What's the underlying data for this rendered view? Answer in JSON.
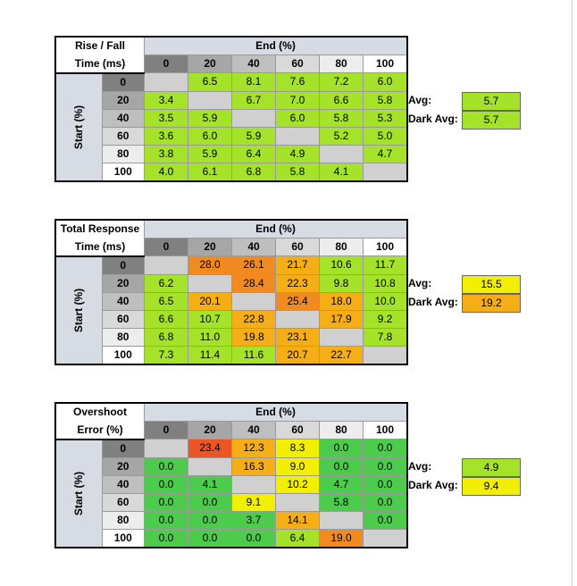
{
  "colors": {
    "header_bg": "#d6dbe4",
    "col_header_shades": [
      "#808080",
      "#a6a6a6",
      "#bfbfbf",
      "#d9d9d9",
      "#ededed",
      "#ffffff"
    ],
    "empty_cell": "#d0d0d0",
    "scale": {
      "green": "#4ccb4c",
      "lime": "#a5e32b",
      "yellow": "#f2ef00",
      "amber": "#f6ae16",
      "orange": "#f28a22",
      "red_orange": "#ee5524"
    }
  },
  "end_label": "End (%)",
  "start_label": "Start (%)",
  "levels": [
    "0",
    "20",
    "40",
    "60",
    "80",
    "100"
  ],
  "avg_label": "Avg:",
  "dark_avg_label": "Dark Avg:",
  "chart_data": [
    {
      "type": "table",
      "title_line1": "Rise / Fall",
      "title_line2": "Time (ms)",
      "avg": "5.7",
      "dark_avg": "5.7",
      "cells": [
        [
          "",
          "6.5",
          "8.1",
          "7.6",
          "7.2",
          "6.0"
        ],
        [
          "3.4",
          "",
          "6.7",
          "7.0",
          "6.6",
          "5.8"
        ],
        [
          "3.5",
          "5.9",
          "",
          "6.0",
          "5.8",
          "5.3"
        ],
        [
          "3.6",
          "6.0",
          "5.9",
          "",
          "5.2",
          "5.0"
        ],
        [
          "3.8",
          "5.9",
          "6.4",
          "4.9",
          "",
          "4.7"
        ],
        [
          "4.0",
          "6.1",
          "6.8",
          "5.8",
          "4.1",
          ""
        ]
      ],
      "cell_colors": [
        [
          "empty",
          "lime",
          "lime",
          "lime",
          "lime",
          "lime"
        ],
        [
          "lime",
          "empty",
          "lime",
          "lime",
          "lime",
          "lime"
        ],
        [
          "lime",
          "lime",
          "empty",
          "lime",
          "lime",
          "lime"
        ],
        [
          "lime",
          "lime",
          "lime",
          "empty",
          "lime",
          "lime"
        ],
        [
          "lime",
          "lime",
          "lime",
          "lime",
          "empty",
          "lime"
        ],
        [
          "lime",
          "lime",
          "lime",
          "lime",
          "lime",
          "empty"
        ]
      ],
      "avg_color": "lime",
      "dark_avg_color": "lime"
    },
    {
      "type": "table",
      "title_line1": "Total Response",
      "title_line2": "Time (ms)",
      "avg": "15.5",
      "dark_avg": "19.2",
      "cells": [
        [
          "",
          "28.0",
          "26.1",
          "21.7",
          "10.6",
          "11.7"
        ],
        [
          "6.2",
          "",
          "28.4",
          "22.3",
          "9.8",
          "10.8"
        ],
        [
          "6.5",
          "20.1",
          "",
          "25.4",
          "18.0",
          "10.0"
        ],
        [
          "6.6",
          "10.7",
          "22.8",
          "",
          "17.9",
          "9.2"
        ],
        [
          "6.8",
          "11.0",
          "19.8",
          "23.1",
          "",
          "7.8"
        ],
        [
          "7.3",
          "11.4",
          "11.6",
          "20.7",
          "22.7",
          ""
        ]
      ],
      "cell_colors": [
        [
          "empty",
          "orange",
          "orange",
          "amber",
          "lime",
          "lime"
        ],
        [
          "lime",
          "empty",
          "orange",
          "amber",
          "lime",
          "lime"
        ],
        [
          "lime",
          "amber",
          "empty",
          "orange",
          "amber",
          "lime"
        ],
        [
          "lime",
          "lime",
          "amber",
          "empty",
          "amber",
          "lime"
        ],
        [
          "lime",
          "lime",
          "amber",
          "amber",
          "empty",
          "lime"
        ],
        [
          "lime",
          "lime",
          "lime",
          "amber",
          "amber",
          "empty"
        ]
      ],
      "avg_color": "yellow",
      "dark_avg_color": "amber"
    },
    {
      "type": "table",
      "title_line1": "Overshoot",
      "title_line2": "Error (%)",
      "avg": "4.9",
      "dark_avg": "9.4",
      "cells": [
        [
          "",
          "23.4",
          "12.3",
          "8.3",
          "0.0",
          "0.0"
        ],
        [
          "0.0",
          "",
          "16.3",
          "9.0",
          "0.0",
          "0.0"
        ],
        [
          "0.0",
          "4.1",
          "",
          "10.2",
          "4.7",
          "0.0"
        ],
        [
          "0.0",
          "0.0",
          "9.1",
          "",
          "5.8",
          "0.0"
        ],
        [
          "0.0",
          "0.0",
          "3.7",
          "14.1",
          "",
          "0.0"
        ],
        [
          "0.0",
          "0.0",
          "0.0",
          "6.4",
          "19.0",
          ""
        ]
      ],
      "cell_colors": [
        [
          "empty",
          "red_orange",
          "amber",
          "yellow",
          "green",
          "green"
        ],
        [
          "green",
          "empty",
          "amber",
          "yellow",
          "green",
          "green"
        ],
        [
          "green",
          "green",
          "empty",
          "yellow",
          "green",
          "green"
        ],
        [
          "green",
          "green",
          "yellow",
          "empty",
          "green",
          "green"
        ],
        [
          "green",
          "green",
          "green",
          "amber",
          "empty",
          "green"
        ],
        [
          "green",
          "green",
          "green",
          "lime",
          "orange",
          "empty"
        ]
      ],
      "avg_color": "lime",
      "dark_avg_color": "yellow"
    }
  ]
}
